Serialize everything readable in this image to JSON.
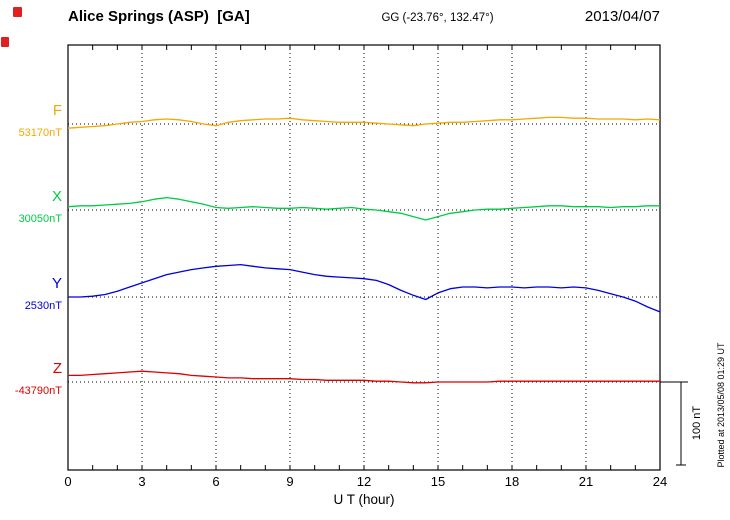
{
  "header": {
    "station": "Alice Springs (ASP)  [GA]",
    "coords": "GG (-23.76°, 132.47°)",
    "date": "2013/04/07"
  },
  "scalebar": {
    "label": "100 nT",
    "nT": 100
  },
  "sidenote": "Plotted at 2013/05/08 01:29 UT",
  "chart_data": {
    "type": "line",
    "title": "Alice Springs (ASP) [GA] magnetogram 2013/04/07",
    "xlabel": "U T (hour)",
    "xlim": [
      0,
      24
    ],
    "xticks": [
      0,
      3,
      6,
      9,
      12,
      15,
      18,
      21,
      24
    ],
    "grid": "vertical-dotted-every-3h",
    "scale_bar_nT": 100,
    "x": [
      0,
      0.5,
      1,
      1.5,
      2,
      2.5,
      3,
      3.5,
      4,
      4.5,
      5,
      5.5,
      6,
      6.5,
      7,
      7.5,
      8,
      8.5,
      9,
      9.5,
      10,
      10.5,
      11,
      11.5,
      12,
      12.5,
      13,
      13.5,
      14,
      14.5,
      15,
      15.5,
      16,
      16.5,
      17,
      17.5,
      18,
      18.5,
      19,
      19.5,
      20,
      20.5,
      21,
      21.5,
      22,
      22.5,
      23,
      23.5,
      24
    ],
    "series": [
      {
        "name": "F",
        "base_label": "53170nT",
        "baseline_nT": 53170,
        "color": "#f5a800",
        "dev_nT": [
          -5,
          -4,
          -3,
          -2,
          0,
          2,
          3,
          5,
          6,
          5,
          3,
          0,
          -2,
          2,
          4,
          5,
          6,
          6,
          7,
          5,
          4,
          3,
          2,
          2,
          2,
          1,
          0,
          -1,
          -2,
          0,
          1,
          2,
          2,
          3,
          4,
          5,
          5,
          6,
          7,
          8,
          8,
          7,
          7,
          6,
          6,
          6,
          5,
          6,
          5
        ]
      },
      {
        "name": "X",
        "base_label": "30050nT",
        "baseline_nT": 30050,
        "color": "#00cc44",
        "dev_nT": [
          4,
          5,
          5,
          6,
          7,
          8,
          10,
          13,
          15,
          13,
          10,
          7,
          3,
          2,
          3,
          4,
          3,
          2,
          2,
          3,
          2,
          1,
          2,
          3,
          1,
          0,
          -2,
          -4,
          -8,
          -12,
          -8,
          -4,
          -2,
          0,
          1,
          1,
          2,
          3,
          4,
          5,
          5,
          4,
          4,
          4,
          3,
          4,
          4,
          5,
          5
        ]
      },
      {
        "name": "Y",
        "base_label": "2530nT",
        "baseline_nT": 2530,
        "color": "#0000dd",
        "dev_nT": [
          0,
          0,
          1,
          3,
          7,
          12,
          17,
          22,
          27,
          30,
          33,
          35,
          37,
          38,
          39,
          37,
          35,
          34,
          33,
          30,
          27,
          25,
          24,
          23,
          22,
          20,
          15,
          8,
          2,
          -3,
          5,
          10,
          12,
          12,
          11,
          12,
          12,
          11,
          12,
          12,
          11,
          12,
          11,
          8,
          4,
          0,
          -5,
          -12,
          -18
        ]
      },
      {
        "name": "Z",
        "base_label": "-43790nT",
        "baseline_nT": -43790,
        "color": "#dd0000",
        "dev_nT": [
          8,
          8,
          9,
          10,
          11,
          12,
          13,
          12,
          11,
          10,
          8,
          7,
          6,
          5,
          5,
          4,
          4,
          4,
          4,
          3,
          3,
          2,
          2,
          2,
          2,
          1,
          1,
          0,
          -1,
          -1,
          0,
          0,
          0,
          0,
          0,
          1,
          1,
          1,
          1,
          1,
          1,
          1,
          1,
          1,
          1,
          1,
          1,
          1,
          1
        ]
      }
    ]
  }
}
